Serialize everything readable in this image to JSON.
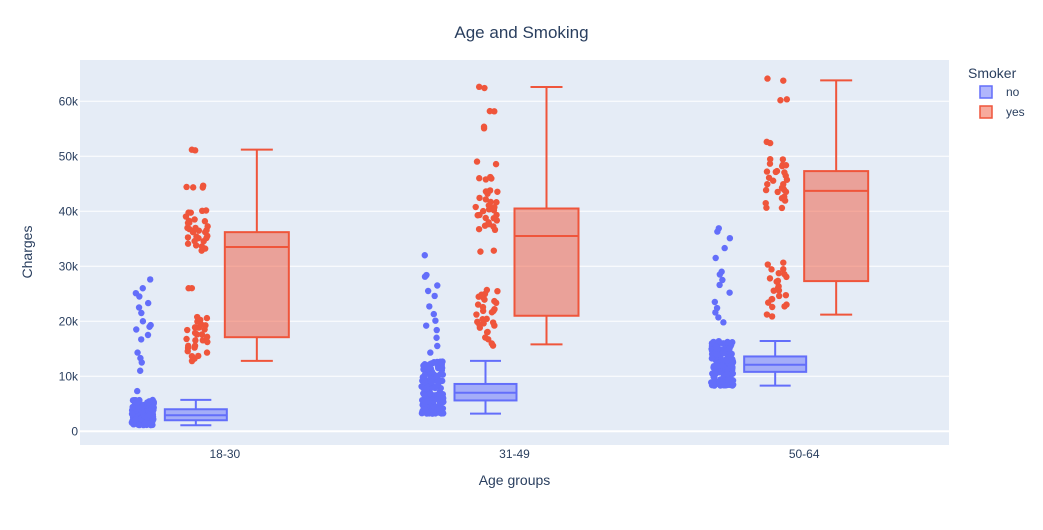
{
  "chart_data": {
    "type": "box",
    "title": "Age and Smoking",
    "xlabel": "Age groups",
    "ylabel": "Charges",
    "categories": [
      "18-30",
      "31-49",
      "50-64"
    ],
    "ylim": [
      -2500,
      67500
    ],
    "yticks": [
      0,
      10000,
      20000,
      30000,
      40000,
      50000,
      60000
    ],
    "ytick_labels": [
      "0",
      "10k",
      "20k",
      "30k",
      "40k",
      "50k",
      "60k"
    ],
    "legend": {
      "title": "Smoker",
      "position": "top-right",
      "entries": [
        "no",
        "yes"
      ]
    },
    "series": [
      {
        "name": "no",
        "color": "#636efa",
        "boxes": [
          {
            "category": "18-30",
            "min": 1100,
            "q1": 2000,
            "median": 2900,
            "q3": 4000,
            "max": 5700
          },
          {
            "category": "31-49",
            "min": 3200,
            "q1": 5600,
            "median": 7000,
            "q3": 8600,
            "max": 12800
          },
          {
            "category": "50-64",
            "min": 8300,
            "q1": 10800,
            "median": 12100,
            "q3": 13600,
            "max": 16400
          }
        ],
        "outliers": [
          {
            "category": "18-30",
            "values": [
              7300,
              11000,
              12500,
              13300,
              14300,
              16700,
              17500,
              18500,
              19000,
              19300,
              20000,
              21500,
              22500,
              23300,
              24500,
              25100,
              26000,
              27600
            ]
          },
          {
            "category": "31-49",
            "values": [
              14300,
              15500,
              17000,
              18400,
              19200,
              20100,
              21300,
              22700,
              24600,
              25500,
              26500,
              28100,
              28400,
              32000
            ]
          },
          {
            "category": "50-64",
            "values": [
              19800,
              20700,
              21600,
              22400,
              23500,
              25200,
              26600,
              27500,
              28500,
              29000,
              31500,
              33300,
              35100,
              36300,
              36900
            ]
          }
        ]
      },
      {
        "name": "yes",
        "color": "#ef553b",
        "boxes": [
          {
            "category": "18-30",
            "min": 12800,
            "q1": 17100,
            "median": 33500,
            "q3": 36200,
            "max": 51200
          },
          {
            "category": "31-49",
            "min": 15800,
            "q1": 21000,
            "median": 35500,
            "q3": 40500,
            "max": 62600
          },
          {
            "category": "50-64",
            "min": 21200,
            "q1": 27300,
            "median": 43700,
            "q3": 47300,
            "max": 63800
          }
        ],
        "points": [
          {
            "category": "18-30",
            "values": [
              12900,
              13800,
              14500,
              15200,
              15800,
              16300,
              16800,
              17300,
              17800,
              18300,
              18900,
              19400,
              20100,
              20800,
              26100,
              32900,
              33800,
              34400,
              34900,
              35300,
              35700,
              36100,
              36500,
              36900,
              37300,
              37700,
              38200,
              38800,
              39600,
              40100,
              44500,
              44600,
              51200
            ]
          },
          {
            "category": "31-49",
            "values": [
              15800,
              17000,
              18100,
              18900,
              19500,
              20100,
              20700,
              21300,
              21900,
              22500,
              23100,
              23700,
              24300,
              24900,
              25400,
              32700,
              36400,
              37300,
              37900,
              38500,
              39000,
              39500,
              40000,
              40500,
              41100,
              41800,
              42500,
              43300,
              43900,
              45800,
              46100,
              48800,
              55200,
              58500,
              62600
            ]
          },
          {
            "category": "50-64",
            "values": [
              21200,
              22400,
              23300,
              24100,
              24800,
              25500,
              26300,
              27100,
              27900,
              28700,
              29600,
              30600,
              40800,
              41600,
              42400,
              43200,
              43900,
              44500,
              45100,
              45700,
              46300,
              46900,
              47500,
              48100,
              48700,
              49200,
              52600,
              60100,
              63800
            ]
          }
        ]
      }
    ]
  }
}
